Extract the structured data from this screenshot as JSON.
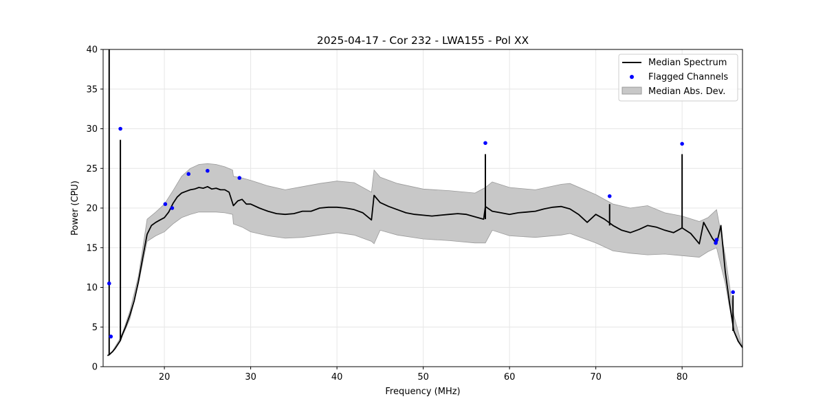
{
  "chart_data": {
    "type": "line",
    "title": "2025-04-17 - Cor 232 - LWA155 - Pol XX",
    "xlabel": "Frequency (MHz)",
    "ylabel": "Power (CPU)",
    "xlim": [
      12.9,
      87.0
    ],
    "ylim": [
      0,
      40
    ],
    "xticks": [
      20,
      30,
      40,
      50,
      60,
      70,
      80
    ],
    "yticks": [
      0,
      5,
      10,
      15,
      20,
      25,
      30,
      35,
      40
    ],
    "grid": true,
    "legend_position": "top-right",
    "legend": [
      "Median Spectrum",
      "Flagged Channels",
      "Median Abs. Dev."
    ],
    "colors": {
      "median": "#000000",
      "flagged": "#0000ff",
      "mad_fill": "#c8c8c8",
      "mad_edge": "#999999",
      "grid": "#e6e6e6"
    },
    "series": [
      {
        "name": "Median Spectrum",
        "x": [
          13.4,
          13.6,
          13.8,
          14.0,
          14.3,
          14.6,
          14.9,
          15.1,
          15.5,
          16.0,
          16.5,
          17.0,
          17.5,
          18.0,
          18.5,
          19.0,
          19.5,
          20.0,
          20.5,
          21.0,
          21.5,
          22.0,
          22.5,
          23.0,
          23.5,
          24.0,
          24.5,
          25.0,
          25.5,
          26.0,
          26.5,
          27.0,
          27.5,
          28.0,
          28.5,
          29.0,
          29.5,
          30.0,
          31.0,
          32.0,
          33.0,
          34.0,
          35.0,
          36.0,
          37.0,
          38.0,
          39.0,
          40.0,
          41.0,
          42.0,
          43.0,
          44.0,
          44.3,
          45.0,
          46.0,
          47.0,
          48.0,
          49.0,
          50.0,
          51.0,
          52.0,
          53.0,
          54.0,
          55.0,
          56.0,
          57.0,
          57.2,
          58.0,
          59.0,
          60.0,
          61.0,
          62.0,
          63.0,
          64.0,
          65.0,
          66.0,
          67.0,
          68.0,
          69.0,
          70.0,
          71.0,
          72.0,
          73.0,
          74.0,
          75.0,
          76.0,
          77.0,
          78.0,
          79.0,
          80.0,
          81.0,
          82.0,
          82.5,
          83.0,
          83.5,
          84.0,
          84.5,
          85.0,
          85.5,
          86.0,
          86.5,
          87.0
        ],
        "values": [
          1.4,
          1.5,
          1.7,
          1.9,
          2.3,
          2.8,
          3.3,
          4.0,
          5.0,
          6.5,
          8.3,
          10.8,
          13.8,
          16.7,
          17.8,
          18.2,
          18.5,
          18.8,
          19.5,
          20.6,
          21.4,
          21.9,
          22.1,
          22.3,
          22.4,
          22.6,
          22.5,
          22.7,
          22.4,
          22.5,
          22.3,
          22.3,
          22.0,
          20.3,
          20.9,
          21.1,
          20.5,
          20.5,
          20.0,
          19.6,
          19.3,
          19.2,
          19.3,
          19.6,
          19.6,
          20.0,
          20.1,
          20.1,
          20.0,
          19.8,
          19.4,
          18.5,
          21.6,
          20.7,
          20.2,
          19.8,
          19.4,
          19.2,
          19.1,
          19.0,
          19.1,
          19.2,
          19.3,
          19.2,
          18.9,
          18.6,
          20.2,
          19.6,
          19.4,
          19.2,
          19.4,
          19.5,
          19.6,
          19.9,
          20.1,
          20.2,
          19.9,
          19.2,
          18.2,
          19.2,
          18.6,
          17.8,
          17.2,
          16.9,
          17.3,
          17.8,
          17.6,
          17.2,
          16.9,
          17.5,
          16.8,
          15.5,
          18.2,
          17.2,
          16.2,
          15.5,
          17.8,
          12.0,
          8.0,
          4.5,
          3.2,
          2.4
        ]
      },
      {
        "name": "Median Abs. Dev.",
        "x": [
          13.4,
          14.0,
          15.0,
          16.0,
          17.0,
          18.0,
          19.0,
          20.0,
          21.0,
          22.0,
          23.0,
          24.0,
          25.0,
          26.0,
          27.0,
          27.9,
          28.0,
          29.0,
          30.0,
          32.0,
          34.0,
          36.0,
          38.0,
          40.0,
          42.0,
          44.0,
          44.3,
          45.0,
          47.0,
          50.0,
          53.0,
          56.0,
          57.2,
          58.0,
          60.0,
          63.0,
          66.0,
          67.0,
          70.0,
          72.0,
          74.0,
          76.0,
          78.0,
          80.0,
          82.0,
          83.0,
          84.0,
          85.0,
          86.0,
          87.0
        ],
        "lower": [
          1.4,
          1.9,
          3.5,
          6.0,
          10.5,
          15.8,
          16.5,
          17.0,
          18.0,
          18.8,
          19.2,
          19.5,
          19.5,
          19.5,
          19.4,
          19.2,
          18.0,
          17.6,
          17.0,
          16.5,
          16.2,
          16.3,
          16.6,
          16.9,
          16.6,
          15.8,
          15.5,
          17.2,
          16.6,
          16.1,
          15.9,
          15.6,
          15.6,
          17.2,
          16.5,
          16.3,
          16.6,
          16.8,
          15.6,
          14.6,
          14.3,
          14.1,
          14.2,
          14.0,
          13.8,
          14.5,
          15.0,
          10.5,
          4.5,
          2.4
        ],
        "upper": [
          1.4,
          2.0,
          3.8,
          7.0,
          11.5,
          18.6,
          19.5,
          20.5,
          22.2,
          24.0,
          25.0,
          25.5,
          25.6,
          25.5,
          25.2,
          24.8,
          24.0,
          23.8,
          23.5,
          22.8,
          22.3,
          22.7,
          23.1,
          23.4,
          23.2,
          22.0,
          24.8,
          23.9,
          23.1,
          22.4,
          22.2,
          21.9,
          22.6,
          23.3,
          22.6,
          22.3,
          23.0,
          23.1,
          21.7,
          20.5,
          20.0,
          20.3,
          19.4,
          19.0,
          18.3,
          18.8,
          19.8,
          14.0,
          6.5,
          2.4
        ]
      },
      {
        "name": "Flagged Channels",
        "x": [
          13.6,
          13.8,
          14.9,
          20.1,
          20.9,
          22.8,
          25.0,
          28.7,
          57.2,
          71.6,
          80.0,
          83.9,
          84.0,
          85.9
        ],
        "values": [
          10.5,
          3.8,
          30.0,
          20.5,
          20.0,
          24.3,
          24.7,
          23.8,
          28.2,
          21.5,
          28.1,
          15.6,
          16.0,
          9.4
        ]
      }
    ],
    "spikes": [
      {
        "x": 13.6,
        "values": [
          1.5,
          40.0
        ]
      },
      {
        "x": 14.9,
        "values": [
          3.3,
          28.6
        ]
      },
      {
        "x": 57.2,
        "values": [
          18.6,
          26.8
        ]
      },
      {
        "x": 71.6,
        "values": [
          17.8,
          20.5
        ]
      },
      {
        "x": 80.0,
        "values": [
          17.5,
          26.8
        ]
      },
      {
        "x": 85.9,
        "values": [
          4.5,
          9.0
        ]
      }
    ]
  }
}
